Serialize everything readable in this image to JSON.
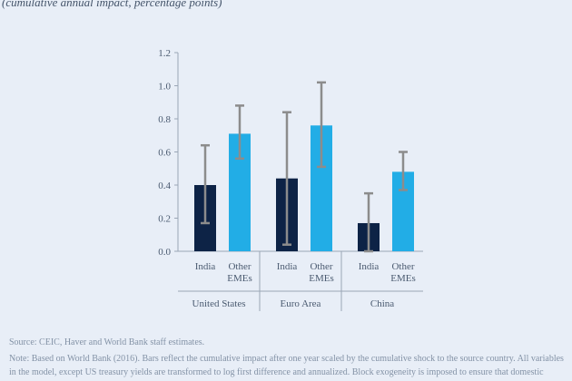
{
  "subtitle": "(cumulative annual impact, percentage points)",
  "source": "Source: CEIC, Haver and World Bank staff estimates.",
  "note": "Note: Based on World Bank (2016). Bars reflect the cumulative impact after one year scaled by the cumulative shock to the source country. All variables in the model, except US treasury yields are transformed to log first difference and annualized. Block exogeneity is imposed to ensure that domestic",
  "colors": {
    "india": "#0d2346",
    "other_emes": "#22ade6",
    "error_bar": "#8c8c8c",
    "axis": "#9aa6b6",
    "text": "#4a5a70"
  },
  "chart_data": {
    "type": "bar",
    "ylim": [
      0,
      1.2
    ],
    "yticks": [
      "0.0",
      "0.2",
      "0.4",
      "0.6",
      "0.8",
      "1.0",
      "1.2"
    ],
    "groups": [
      {
        "name": "United States",
        "bars": [
          {
            "label": [
              "India"
            ],
            "series": "India",
            "value": 0.4,
            "low": 0.17,
            "high": 0.64
          },
          {
            "label": [
              "Other",
              "EMEs"
            ],
            "series": "Other EMEs",
            "value": 0.71,
            "low": 0.56,
            "high": 0.88
          }
        ]
      },
      {
        "name": "Euro Area",
        "bars": [
          {
            "label": [
              "India"
            ],
            "series": "India",
            "value": 0.44,
            "low": 0.04,
            "high": 0.84
          },
          {
            "label": [
              "Other",
              "EMEs"
            ],
            "series": "Other EMEs",
            "value": 0.76,
            "low": 0.51,
            "high": 1.02
          }
        ]
      },
      {
        "name": "China",
        "bars": [
          {
            "label": [
              "India"
            ],
            "series": "India",
            "value": 0.17,
            "low": 0.0,
            "high": 0.35
          },
          {
            "label": [
              "Other",
              "EMEs"
            ],
            "series": "Other EMEs",
            "value": 0.48,
            "low": 0.37,
            "high": 0.6
          }
        ]
      }
    ]
  }
}
